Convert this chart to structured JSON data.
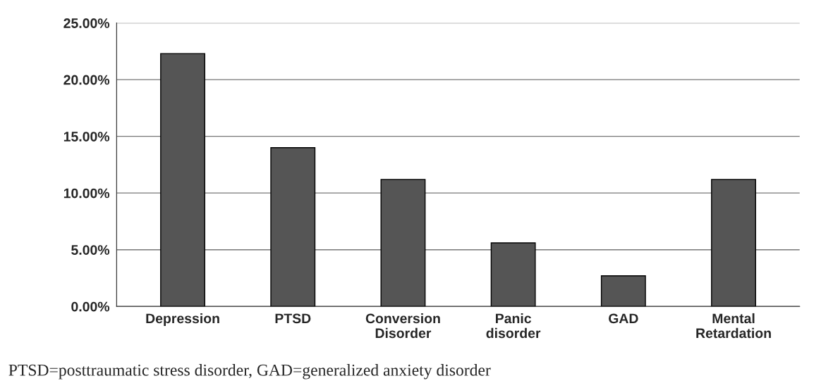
{
  "chart_data": {
    "type": "bar",
    "categories": [
      "Depression",
      "PTSD",
      "Conversion\nDisorder",
      "Panic\ndisorder",
      "GAD",
      "Mental\nRetardation"
    ],
    "values": [
      22.3,
      14.0,
      11.2,
      5.6,
      2.7,
      11.2
    ],
    "color": "#555555",
    "ylim": [
      0,
      25
    ],
    "yticks": [
      {
        "value": 0,
        "label": "0.00%"
      },
      {
        "value": 5,
        "label": "5.00%"
      },
      {
        "value": 10,
        "label": "10.00%"
      },
      {
        "value": 15,
        "label": "15.00%"
      },
      {
        "value": 20,
        "label": "20.00%"
      },
      {
        "value": 25,
        "label": "25.00%"
      }
    ],
    "grid": "y",
    "annotations": [
      "PTSD=posttraumatic stress disorder, GAD=generalized anxiety disorder"
    ]
  }
}
